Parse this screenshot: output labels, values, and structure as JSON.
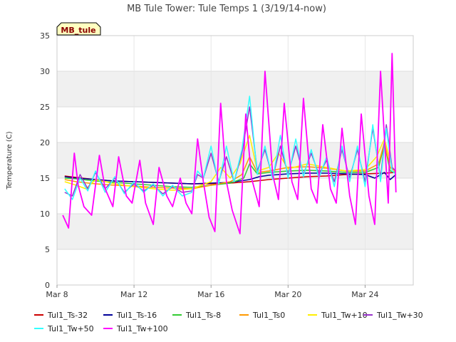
{
  "chart_data": {
    "type": "line",
    "title": "MB Tule Tower: Tule Temps 1 (3/19/14-now)",
    "ylabel": "Temperature (C)",
    "xlabel": "",
    "ylim": [
      0,
      35
    ],
    "xlim": [
      8,
      26.5
    ],
    "yticks": [
      0,
      5,
      10,
      15,
      20,
      25,
      30,
      35
    ],
    "xticks": [
      {
        "value": 8,
        "label": "Mar 8"
      },
      {
        "value": 12,
        "label": "Mar 12"
      },
      {
        "value": 16,
        "label": "Mar 16"
      },
      {
        "value": 20,
        "label": "Mar 20"
      },
      {
        "value": 24,
        "label": "Mar 24"
      }
    ],
    "station_badge": "MB_tule",
    "band_color": "#f0f0f0",
    "series": [
      {
        "name": "Tul1_Ts-32",
        "color": "#cc0000",
        "width": 1.5,
        "x": [
          8.4,
          9,
          10,
          11,
          12,
          13,
          14,
          15,
          16,
          17,
          18,
          19,
          20,
          21,
          22,
          23,
          24,
          25,
          25.6
        ],
        "y": [
          15.3,
          15.1,
          14.8,
          14.6,
          14.5,
          14.4,
          14.3,
          14.2,
          14.2,
          14.3,
          14.5,
          14.8,
          15.0,
          15.2,
          15.3,
          15.5,
          15.6,
          15.7,
          15.8
        ]
      },
      {
        "name": "Tul1_Ts-16",
        "color": "#000099",
        "width": 1.5,
        "x": [
          8.4,
          9,
          10,
          11,
          12,
          13,
          14,
          15,
          16,
          17,
          18,
          18.5,
          19,
          20,
          21,
          22,
          23,
          24,
          24.5,
          25,
          25.3,
          25.6
        ],
        "y": [
          15.2,
          15.0,
          14.8,
          14.6,
          14.5,
          14.4,
          14.3,
          14.2,
          14.3,
          14.4,
          14.8,
          15.2,
          15.4,
          15.6,
          15.7,
          15.7,
          15.6,
          15.5,
          15.0,
          15.8,
          14.8,
          15.5
        ]
      },
      {
        "name": "Tul1_Ts-8",
        "color": "#33cc33",
        "width": 1.5,
        "x": [
          8.4,
          9,
          10,
          11,
          12,
          13,
          14,
          15,
          16,
          17,
          17.7,
          18,
          18.4,
          19,
          20,
          21,
          22,
          23,
          24,
          24.7,
          25,
          25.3,
          25.6
        ],
        "y": [
          15.0,
          14.9,
          14.6,
          14.4,
          14.2,
          14.0,
          13.8,
          13.7,
          14.0,
          14.3,
          15.0,
          17.0,
          15.6,
          15.8,
          16.0,
          16.1,
          16.0,
          15.8,
          15.8,
          16.5,
          19.8,
          16.0,
          15.8
        ]
      },
      {
        "name": "Tul1_Ts0",
        "color": "#ff9900",
        "width": 1.5,
        "x": [
          8.4,
          9,
          10,
          11,
          12,
          13,
          14,
          15,
          16,
          17,
          17.6,
          18,
          18.4,
          19,
          20,
          21,
          22,
          23,
          24,
          24.7,
          25,
          25.3,
          25.6
        ],
        "y": [
          14.8,
          14.5,
          14.2,
          14.0,
          13.9,
          13.7,
          13.6,
          13.5,
          14.0,
          14.5,
          15.5,
          18.0,
          15.8,
          16.0,
          16.5,
          16.6,
          16.4,
          16.0,
          16.0,
          17.0,
          20.0,
          16.5,
          15.9
        ]
      },
      {
        "name": "Tul1_Tw+10",
        "color": "#ffee00",
        "width": 1.5,
        "x": [
          8.4,
          9,
          9.5,
          10,
          11,
          12,
          13,
          14,
          15,
          16,
          16.5,
          17,
          17.5,
          18,
          18.4,
          19,
          19.5,
          20,
          21,
          22,
          23,
          24,
          24.6,
          25,
          25.4,
          25.6
        ],
        "y": [
          14.5,
          14.0,
          13.5,
          14.8,
          14.2,
          13.8,
          13.5,
          13.3,
          13.5,
          14.5,
          16.5,
          15.0,
          17.0,
          21.0,
          16.0,
          16.5,
          18.5,
          16.3,
          17.0,
          16.5,
          16.0,
          16.2,
          18.0,
          20.5,
          16.5,
          16.0
        ]
      },
      {
        "name": "Tul1_Tw+30",
        "color": "#9933cc",
        "width": 1.5,
        "x": [
          8.4,
          8.8,
          9.2,
          9.6,
          10,
          10.5,
          11,
          11.5,
          12,
          12.5,
          13,
          13.5,
          14,
          14.5,
          15,
          15.3,
          15.6,
          16,
          16.4,
          16.8,
          17.2,
          17.6,
          18,
          18.4,
          18.8,
          19.2,
          19.6,
          20,
          20.4,
          20.8,
          21.2,
          21.6,
          22,
          22.4,
          22.8,
          23.2,
          23.6,
          24,
          24.4,
          24.8,
          25.1,
          25.4,
          25.6
        ],
        "y": [
          13.0,
          12.5,
          15.5,
          13.5,
          15.8,
          13.5,
          15.0,
          13.0,
          14.2,
          13.2,
          14.0,
          12.8,
          13.8,
          13.0,
          13.2,
          15.5,
          15.0,
          18.5,
          14.5,
          18.0,
          14.5,
          18.5,
          25.0,
          16.0,
          19.0,
          15.0,
          19.5,
          15.5,
          19.5,
          15.5,
          18.5,
          15.5,
          17.5,
          14.5,
          19.0,
          15.0,
          19.0,
          14.5,
          22.0,
          15.0,
          22.5,
          16.5,
          16.0
        ]
      },
      {
        "name": "Tul1_Tw+50",
        "color": "#33ffff",
        "width": 1.5,
        "x": [
          8.4,
          8.8,
          9.2,
          9.6,
          10,
          10.5,
          11,
          11.5,
          12,
          12.5,
          13,
          13.5,
          14,
          14.5,
          15,
          15.3,
          15.6,
          16,
          16.4,
          16.8,
          17.2,
          17.6,
          18,
          18.4,
          18.8,
          19.2,
          19.6,
          20,
          20.4,
          20.8,
          21.2,
          21.6,
          22,
          22.4,
          22.8,
          23.2,
          23.6,
          24,
          24.4,
          24.8,
          25.1,
          25.4,
          25.6
        ],
        "y": [
          13.5,
          12.0,
          15.0,
          13.2,
          16.0,
          13.0,
          15.2,
          12.8,
          14.5,
          13.0,
          14.2,
          12.5,
          14.0,
          12.5,
          13.0,
          16.0,
          15.0,
          19.5,
          14.2,
          19.5,
          14.5,
          19.0,
          26.5,
          15.5,
          19.5,
          14.8,
          21.0,
          15.0,
          20.5,
          15.2,
          19.0,
          15.0,
          18.0,
          13.8,
          19.5,
          14.5,
          19.5,
          13.8,
          22.5,
          14.5,
          22.0,
          16.0,
          15.5
        ]
      },
      {
        "name": "Tul1_Tw+100",
        "color": "#ff00ff",
        "width": 1.8,
        "x": [
          8.3,
          8.6,
          8.9,
          9.1,
          9.4,
          9.8,
          10.2,
          10.5,
          10.9,
          11.2,
          11.6,
          11.9,
          12.3,
          12.6,
          13.0,
          13.3,
          13.7,
          14.0,
          14.4,
          14.7,
          15.0,
          15.3,
          15.6,
          15.9,
          16.2,
          16.5,
          16.8,
          17.1,
          17.5,
          17.8,
          18.1,
          18.5,
          18.8,
          19.2,
          19.5,
          19.8,
          20.2,
          20.5,
          20.8,
          21.2,
          21.5,
          21.8,
          22.2,
          22.5,
          22.8,
          23.2,
          23.5,
          23.8,
          24.2,
          24.5,
          24.8,
          25.2,
          25.4,
          25.6
        ],
        "y": [
          9.8,
          8.0,
          18.5,
          14.0,
          11.0,
          9.8,
          18.2,
          13.5,
          11.0,
          18.0,
          12.5,
          11.5,
          17.5,
          11.5,
          8.5,
          16.5,
          12.5,
          11.0,
          15.0,
          11.5,
          10.0,
          20.5,
          14.5,
          9.5,
          7.5,
          25.5,
          14.5,
          10.5,
          7.2,
          24.0,
          15.0,
          11.0,
          30.0,
          15.5,
          12.0,
          25.5,
          14.5,
          12.0,
          26.2,
          13.5,
          11.5,
          22.5,
          13.5,
          11.5,
          22.0,
          12.5,
          8.5,
          24.0,
          12.5,
          8.5,
          30.0,
          11.5,
          32.5,
          13.0
        ]
      }
    ]
  }
}
